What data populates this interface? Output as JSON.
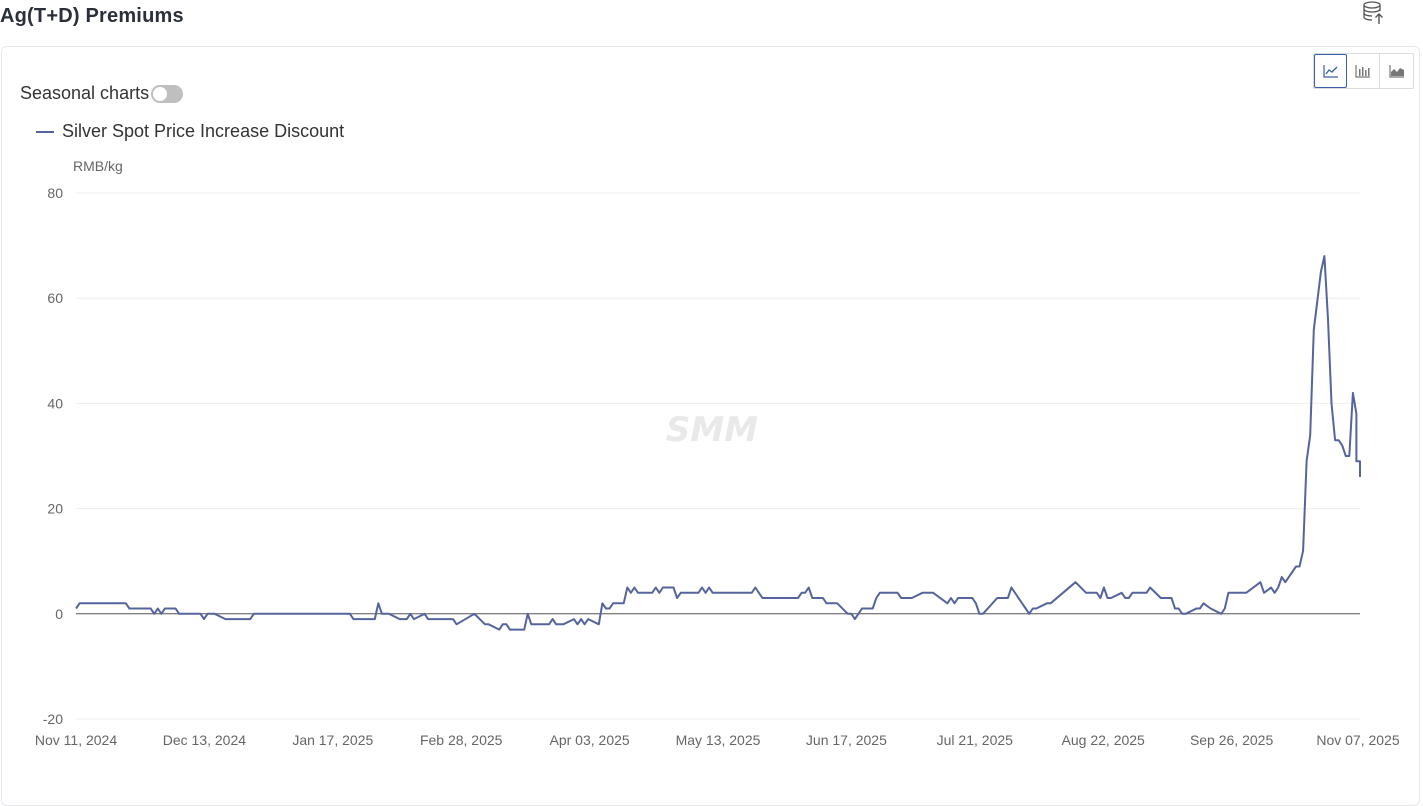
{
  "page": {
    "title": "Ag(T+D) Premiums",
    "export_icon": "database-export-icon"
  },
  "controls": {
    "seasonal_label": "Seasonal charts",
    "seasonal_on": false,
    "chart_types": [
      {
        "name": "line-chart-icon",
        "active": true
      },
      {
        "name": "bar-chart-icon",
        "active": false
      },
      {
        "name": "area-chart-icon",
        "active": false
      }
    ]
  },
  "colors": {
    "series": "#56649e",
    "grid": "#eeeeee",
    "zero_line": "#555555",
    "active_border": "#3a5ea8"
  },
  "watermark": "SMM",
  "chart_data": {
    "type": "line",
    "title": "",
    "ylabel": "RMB/kg",
    "ylim": [
      -20,
      80
    ],
    "yticks": [
      80,
      60,
      40,
      20,
      0,
      -20
    ],
    "xlim": [
      "2024-11-11",
      "2025-11-07"
    ],
    "xticks": [
      "Nov 11, 2024",
      "Dec 13, 2024",
      "Jan 17, 2025",
      "Feb 28, 2025",
      "Apr 03, 2025",
      "May 13, 2025",
      "Jun 17, 2025",
      "Jul 21, 2025",
      "Aug 22, 2025",
      "Sep 26, 2025",
      "Nov 07, 2025"
    ],
    "legend_position": "top-left",
    "grid": true,
    "series": [
      {
        "name": "Silver Spot Price Increase Discount",
        "points": [
          [
            "2024-11-11",
            1
          ],
          [
            "2024-11-12",
            2
          ],
          [
            "2024-11-20",
            2
          ],
          [
            "2024-11-25",
            2
          ],
          [
            "2024-11-26",
            1
          ],
          [
            "2024-12-02",
            1
          ],
          [
            "2024-12-03",
            0
          ],
          [
            "2024-12-04",
            1
          ],
          [
            "2024-12-05",
            0
          ],
          [
            "2024-12-06",
            1
          ],
          [
            "2024-12-09",
            1
          ],
          [
            "2024-12-10",
            0
          ],
          [
            "2024-12-16",
            0
          ],
          [
            "2024-12-17",
            -1
          ],
          [
            "2024-12-18",
            0
          ],
          [
            "2024-12-20",
            0
          ],
          [
            "2024-12-23",
            -1
          ],
          [
            "2024-12-30",
            -1
          ],
          [
            "2024-12-31",
            0
          ],
          [
            "2025-01-27",
            0
          ],
          [
            "2025-01-28",
            -1
          ],
          [
            "2025-02-03",
            -1
          ],
          [
            "2025-02-04",
            2
          ],
          [
            "2025-02-05",
            0
          ],
          [
            "2025-02-07",
            0
          ],
          [
            "2025-02-10",
            -1
          ],
          [
            "2025-02-12",
            -1
          ],
          [
            "2025-02-13",
            0
          ],
          [
            "2025-02-14",
            -1
          ],
          [
            "2025-02-17",
            0
          ],
          [
            "2025-02-18",
            -1
          ],
          [
            "2025-02-25",
            -1
          ],
          [
            "2025-02-26",
            -2
          ],
          [
            "2025-03-03",
            0
          ],
          [
            "2025-03-06",
            -2
          ],
          [
            "2025-03-07",
            -2
          ],
          [
            "2025-03-10",
            -3
          ],
          [
            "2025-03-11",
            -2
          ],
          [
            "2025-03-12",
            -2
          ],
          [
            "2025-03-13",
            -3
          ],
          [
            "2025-03-17",
            -3
          ],
          [
            "2025-03-18",
            0
          ],
          [
            "2025-03-19",
            -2
          ],
          [
            "2025-03-24",
            -2
          ],
          [
            "2025-03-25",
            -1
          ],
          [
            "2025-03-26",
            -2
          ],
          [
            "2025-03-28",
            -2
          ],
          [
            "2025-03-31",
            -1
          ],
          [
            "2025-04-01",
            -2
          ],
          [
            "2025-04-02",
            -1
          ],
          [
            "2025-04-03",
            -2
          ],
          [
            "2025-04-04",
            -1
          ],
          [
            "2025-04-07",
            -2
          ],
          [
            "2025-04-08",
            2
          ],
          [
            "2025-04-09",
            1
          ],
          [
            "2025-04-10",
            1
          ],
          [
            "2025-04-11",
            2
          ],
          [
            "2025-04-14",
            2
          ],
          [
            "2025-04-15",
            5
          ],
          [
            "2025-04-16",
            4
          ],
          [
            "2025-04-17",
            5
          ],
          [
            "2025-04-18",
            4
          ],
          [
            "2025-04-22",
            4
          ],
          [
            "2025-04-23",
            5
          ],
          [
            "2025-04-24",
            4
          ],
          [
            "2025-04-25",
            5
          ],
          [
            "2025-04-28",
            5
          ],
          [
            "2025-04-29",
            3
          ],
          [
            "2025-04-30",
            4
          ],
          [
            "2025-05-05",
            4
          ],
          [
            "2025-05-06",
            5
          ],
          [
            "2025-05-07",
            4
          ],
          [
            "2025-05-08",
            5
          ],
          [
            "2025-05-09",
            4
          ],
          [
            "2025-05-20",
            4
          ],
          [
            "2025-05-21",
            5
          ],
          [
            "2025-05-22",
            4
          ],
          [
            "2025-05-23",
            3
          ],
          [
            "2025-06-02",
            3
          ],
          [
            "2025-06-03",
            4
          ],
          [
            "2025-06-04",
            4
          ],
          [
            "2025-06-05",
            5
          ],
          [
            "2025-06-06",
            3
          ],
          [
            "2025-06-09",
            3
          ],
          [
            "2025-06-10",
            2
          ],
          [
            "2025-06-13",
            2
          ],
          [
            "2025-06-16",
            0
          ],
          [
            "2025-06-17",
            0
          ],
          [
            "2025-06-18",
            -1
          ],
          [
            "2025-06-20",
            1
          ],
          [
            "2025-06-23",
            1
          ],
          [
            "2025-06-24",
            3
          ],
          [
            "2025-06-25",
            4
          ],
          [
            "2025-06-30",
            4
          ],
          [
            "2025-07-01",
            3
          ],
          [
            "2025-07-04",
            3
          ],
          [
            "2025-07-07",
            4
          ],
          [
            "2025-07-10",
            4
          ],
          [
            "2025-07-14",
            2
          ],
          [
            "2025-07-15",
            3
          ],
          [
            "2025-07-16",
            2
          ],
          [
            "2025-07-17",
            3
          ],
          [
            "2025-07-21",
            3
          ],
          [
            "2025-07-22",
            2
          ],
          [
            "2025-07-23",
            0
          ],
          [
            "2025-07-24",
            0
          ],
          [
            "2025-07-28",
            3
          ],
          [
            "2025-07-31",
            3
          ],
          [
            "2025-08-01",
            5
          ],
          [
            "2025-08-04",
            2
          ],
          [
            "2025-08-05",
            1
          ],
          [
            "2025-08-06",
            0
          ],
          [
            "2025-08-07",
            1
          ],
          [
            "2025-08-08",
            1
          ],
          [
            "2025-08-11",
            2
          ],
          [
            "2025-08-12",
            2
          ],
          [
            "2025-08-19",
            6
          ],
          [
            "2025-08-22",
            4
          ],
          [
            "2025-08-25",
            4
          ],
          [
            "2025-08-26",
            3
          ],
          [
            "2025-08-27",
            5
          ],
          [
            "2025-08-28",
            3
          ],
          [
            "2025-08-29",
            3
          ],
          [
            "2025-09-01",
            4
          ],
          [
            "2025-09-02",
            3
          ],
          [
            "2025-09-03",
            3
          ],
          [
            "2025-09-04",
            4
          ],
          [
            "2025-09-08",
            4
          ],
          [
            "2025-09-09",
            5
          ],
          [
            "2025-09-12",
            3
          ],
          [
            "2025-09-15",
            3
          ],
          [
            "2025-09-16",
            1
          ],
          [
            "2025-09-17",
            1
          ],
          [
            "2025-09-18",
            0
          ],
          [
            "2025-09-19",
            0
          ],
          [
            "2025-09-22",
            1
          ],
          [
            "2025-09-23",
            1
          ],
          [
            "2025-09-24",
            2
          ],
          [
            "2025-09-26",
            1
          ],
          [
            "2025-09-29",
            0
          ],
          [
            "2025-09-30",
            1
          ],
          [
            "2025-10-01",
            4
          ],
          [
            "2025-10-06",
            4
          ],
          [
            "2025-10-10",
            6
          ],
          [
            "2025-10-11",
            4
          ],
          [
            "2025-10-13",
            5
          ],
          [
            "2025-10-14",
            4
          ],
          [
            "2025-10-15",
            5
          ],
          [
            "2025-10-16",
            7
          ],
          [
            "2025-10-17",
            6
          ],
          [
            "2025-10-20",
            9
          ],
          [
            "2025-10-21",
            9
          ],
          [
            "2025-10-22",
            12
          ],
          [
            "2025-10-23",
            29
          ],
          [
            "2025-10-24",
            34
          ],
          [
            "2025-10-25",
            54
          ],
          [
            "2025-10-27",
            65
          ],
          [
            "2025-10-28",
            68
          ],
          [
            "2025-10-29",
            56
          ],
          [
            "2025-10-30",
            40
          ],
          [
            "2025-10-31",
            33
          ],
          [
            "2025-11-01",
            33
          ],
          [
            "2025-11-02",
            32
          ],
          [
            "2025-11-03",
            30
          ],
          [
            "2025-11-04",
            30
          ],
          [
            "2025-11-05",
            42
          ],
          [
            "2025-11-06",
            38
          ],
          [
            "2025-11-06",
            29
          ],
          [
            "2025-11-07",
            29
          ],
          [
            "2025-11-07",
            26
          ]
        ]
      }
    ]
  }
}
